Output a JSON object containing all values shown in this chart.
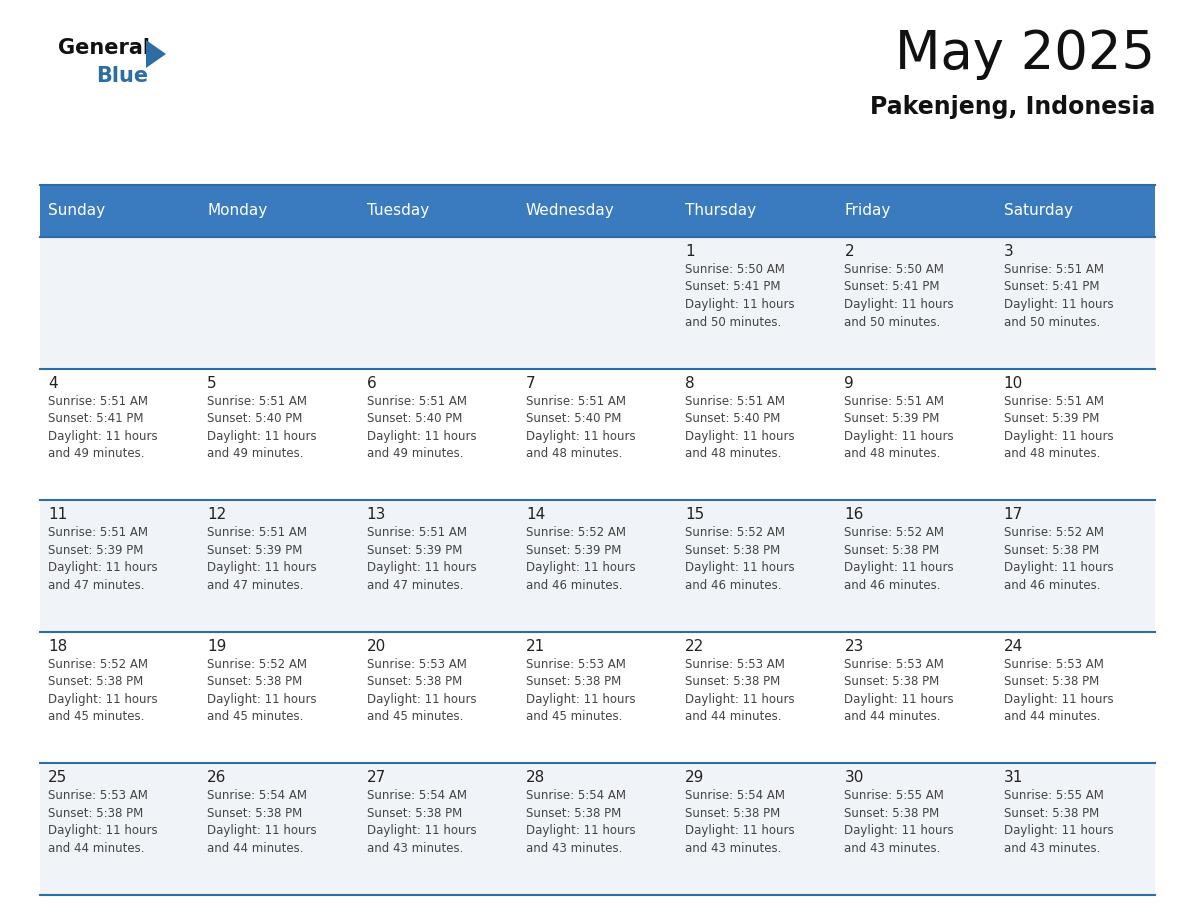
{
  "title": "May 2025",
  "subtitle": "Pakenjeng, Indonesia",
  "header_bg": "#3a7abf",
  "header_text_color": "#ffffff",
  "day_names": [
    "Sunday",
    "Monday",
    "Tuesday",
    "Wednesday",
    "Thursday",
    "Friday",
    "Saturday"
  ],
  "row_bg_odd": "#f0f4f8",
  "row_bg_even": "#ffffff",
  "grid_line_color": "#2d6da3",
  "date_text_color": "#222222",
  "info_text_color": "#444444",
  "calendar": [
    [
      {
        "day": "",
        "info": ""
      },
      {
        "day": "",
        "info": ""
      },
      {
        "day": "",
        "info": ""
      },
      {
        "day": "",
        "info": ""
      },
      {
        "day": "1",
        "info": "Sunrise: 5:50 AM\nSunset: 5:41 PM\nDaylight: 11 hours\nand 50 minutes."
      },
      {
        "day": "2",
        "info": "Sunrise: 5:50 AM\nSunset: 5:41 PM\nDaylight: 11 hours\nand 50 minutes."
      },
      {
        "day": "3",
        "info": "Sunrise: 5:51 AM\nSunset: 5:41 PM\nDaylight: 11 hours\nand 50 minutes."
      }
    ],
    [
      {
        "day": "4",
        "info": "Sunrise: 5:51 AM\nSunset: 5:41 PM\nDaylight: 11 hours\nand 49 minutes."
      },
      {
        "day": "5",
        "info": "Sunrise: 5:51 AM\nSunset: 5:40 PM\nDaylight: 11 hours\nand 49 minutes."
      },
      {
        "day": "6",
        "info": "Sunrise: 5:51 AM\nSunset: 5:40 PM\nDaylight: 11 hours\nand 49 minutes."
      },
      {
        "day": "7",
        "info": "Sunrise: 5:51 AM\nSunset: 5:40 PM\nDaylight: 11 hours\nand 48 minutes."
      },
      {
        "day": "8",
        "info": "Sunrise: 5:51 AM\nSunset: 5:40 PM\nDaylight: 11 hours\nand 48 minutes."
      },
      {
        "day": "9",
        "info": "Sunrise: 5:51 AM\nSunset: 5:39 PM\nDaylight: 11 hours\nand 48 minutes."
      },
      {
        "day": "10",
        "info": "Sunrise: 5:51 AM\nSunset: 5:39 PM\nDaylight: 11 hours\nand 48 minutes."
      }
    ],
    [
      {
        "day": "11",
        "info": "Sunrise: 5:51 AM\nSunset: 5:39 PM\nDaylight: 11 hours\nand 47 minutes."
      },
      {
        "day": "12",
        "info": "Sunrise: 5:51 AM\nSunset: 5:39 PM\nDaylight: 11 hours\nand 47 minutes."
      },
      {
        "day": "13",
        "info": "Sunrise: 5:51 AM\nSunset: 5:39 PM\nDaylight: 11 hours\nand 47 minutes."
      },
      {
        "day": "14",
        "info": "Sunrise: 5:52 AM\nSunset: 5:39 PM\nDaylight: 11 hours\nand 46 minutes."
      },
      {
        "day": "15",
        "info": "Sunrise: 5:52 AM\nSunset: 5:38 PM\nDaylight: 11 hours\nand 46 minutes."
      },
      {
        "day": "16",
        "info": "Sunrise: 5:52 AM\nSunset: 5:38 PM\nDaylight: 11 hours\nand 46 minutes."
      },
      {
        "day": "17",
        "info": "Sunrise: 5:52 AM\nSunset: 5:38 PM\nDaylight: 11 hours\nand 46 minutes."
      }
    ],
    [
      {
        "day": "18",
        "info": "Sunrise: 5:52 AM\nSunset: 5:38 PM\nDaylight: 11 hours\nand 45 minutes."
      },
      {
        "day": "19",
        "info": "Sunrise: 5:52 AM\nSunset: 5:38 PM\nDaylight: 11 hours\nand 45 minutes."
      },
      {
        "day": "20",
        "info": "Sunrise: 5:53 AM\nSunset: 5:38 PM\nDaylight: 11 hours\nand 45 minutes."
      },
      {
        "day": "21",
        "info": "Sunrise: 5:53 AM\nSunset: 5:38 PM\nDaylight: 11 hours\nand 45 minutes."
      },
      {
        "day": "22",
        "info": "Sunrise: 5:53 AM\nSunset: 5:38 PM\nDaylight: 11 hours\nand 44 minutes."
      },
      {
        "day": "23",
        "info": "Sunrise: 5:53 AM\nSunset: 5:38 PM\nDaylight: 11 hours\nand 44 minutes."
      },
      {
        "day": "24",
        "info": "Sunrise: 5:53 AM\nSunset: 5:38 PM\nDaylight: 11 hours\nand 44 minutes."
      }
    ],
    [
      {
        "day": "25",
        "info": "Sunrise: 5:53 AM\nSunset: 5:38 PM\nDaylight: 11 hours\nand 44 minutes."
      },
      {
        "day": "26",
        "info": "Sunrise: 5:54 AM\nSunset: 5:38 PM\nDaylight: 11 hours\nand 44 minutes."
      },
      {
        "day": "27",
        "info": "Sunrise: 5:54 AM\nSunset: 5:38 PM\nDaylight: 11 hours\nand 43 minutes."
      },
      {
        "day": "28",
        "info": "Sunrise: 5:54 AM\nSunset: 5:38 PM\nDaylight: 11 hours\nand 43 minutes."
      },
      {
        "day": "29",
        "info": "Sunrise: 5:54 AM\nSunset: 5:38 PM\nDaylight: 11 hours\nand 43 minutes."
      },
      {
        "day": "30",
        "info": "Sunrise: 5:55 AM\nSunset: 5:38 PM\nDaylight: 11 hours\nand 43 minutes."
      },
      {
        "day": "31",
        "info": "Sunrise: 5:55 AM\nSunset: 5:38 PM\nDaylight: 11 hours\nand 43 minutes."
      }
    ]
  ],
  "logo_color_general": "#111111",
  "logo_color_blue": "#2d6da3",
  "logo_triangle_color": "#2d6da3",
  "title_fontsize": 38,
  "subtitle_fontsize": 17,
  "header_fontsize": 11,
  "day_fontsize": 11,
  "info_fontsize": 8.5
}
